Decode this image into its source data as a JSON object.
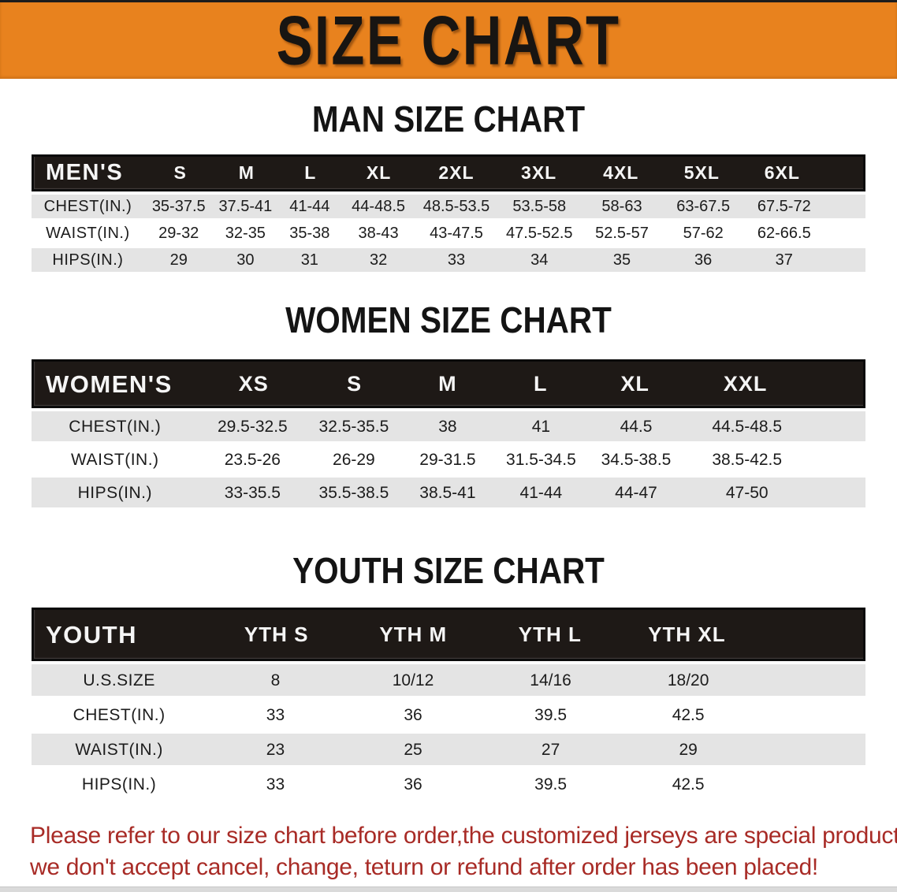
{
  "banner": {
    "title": "SIZE CHART"
  },
  "sections": [
    {
      "heading": "MAN SIZE CHART",
      "table": {
        "header": [
          "MEN'S",
          "S",
          "M",
          "L",
          "XL",
          "2XL",
          "3XL",
          "4XL",
          "5XL",
          "6XL"
        ],
        "rows": [
          [
            "CHEST(IN.)",
            "35-37.5",
            "37.5-41",
            "41-44",
            "44-48.5",
            "48.5-53.5",
            "53.5-58",
            "58-63",
            "63-67.5",
            "67.5-72"
          ],
          [
            "WAIST(IN.)",
            "29-32",
            "32-35",
            "35-38",
            "38-43",
            "43-47.5",
            "47.5-52.5",
            "52.5-57",
            "57-62",
            "62-66.5"
          ],
          [
            "HIPS(IN.)",
            "29",
            "30",
            "31",
            "32",
            "33",
            "34",
            "35",
            "36",
            "37"
          ]
        ]
      }
    },
    {
      "heading": "WOMEN SIZE CHART",
      "table": {
        "header": [
          "WOMEN'S",
          "XS",
          "S",
          "M",
          "L",
          "XL",
          "XXL"
        ],
        "rows": [
          [
            "CHEST(IN.)",
            "29.5-32.5",
            "32.5-35.5",
            "38",
            "41",
            "44.5",
            "44.5-48.5"
          ],
          [
            "WAIST(IN.)",
            "23.5-26",
            "26-29",
            "29-31.5",
            "31.5-34.5",
            "34.5-38.5",
            "38.5-42.5"
          ],
          [
            "HIPS(IN.)",
            "33-35.5",
            "35.5-38.5",
            "38.5-41",
            "41-44",
            "44-47",
            "47-50"
          ]
        ]
      }
    },
    {
      "heading": "YOUTH SIZE CHART",
      "table": {
        "header": [
          "YOUTH",
          "YTH S",
          "YTH M",
          "YTH L",
          "YTH XL"
        ],
        "rows": [
          [
            "U.S.SIZE",
            "8",
            "10/12",
            "14/16",
            "18/20"
          ],
          [
            "CHEST(IN.)",
            "33",
            "36",
            "39.5",
            "42.5"
          ],
          [
            "WAIST(IN.)",
            "23",
            "25",
            "27",
            "29"
          ],
          [
            "HIPS(IN.)",
            "33",
            "36",
            "39.5",
            "42.5"
          ]
        ]
      }
    }
  ],
  "footer": {
    "line1": "Please refer to our size chart before order,the customized jerseys are special products,",
    "line2": "we don't accept cancel, change, teturn or refund after order has been placed!"
  },
  "colors": {
    "banner_bg": "#E8821E",
    "header_bg": "#1E1916",
    "row_gray": "#E4E4E4",
    "notice_red": "#A82B26"
  }
}
